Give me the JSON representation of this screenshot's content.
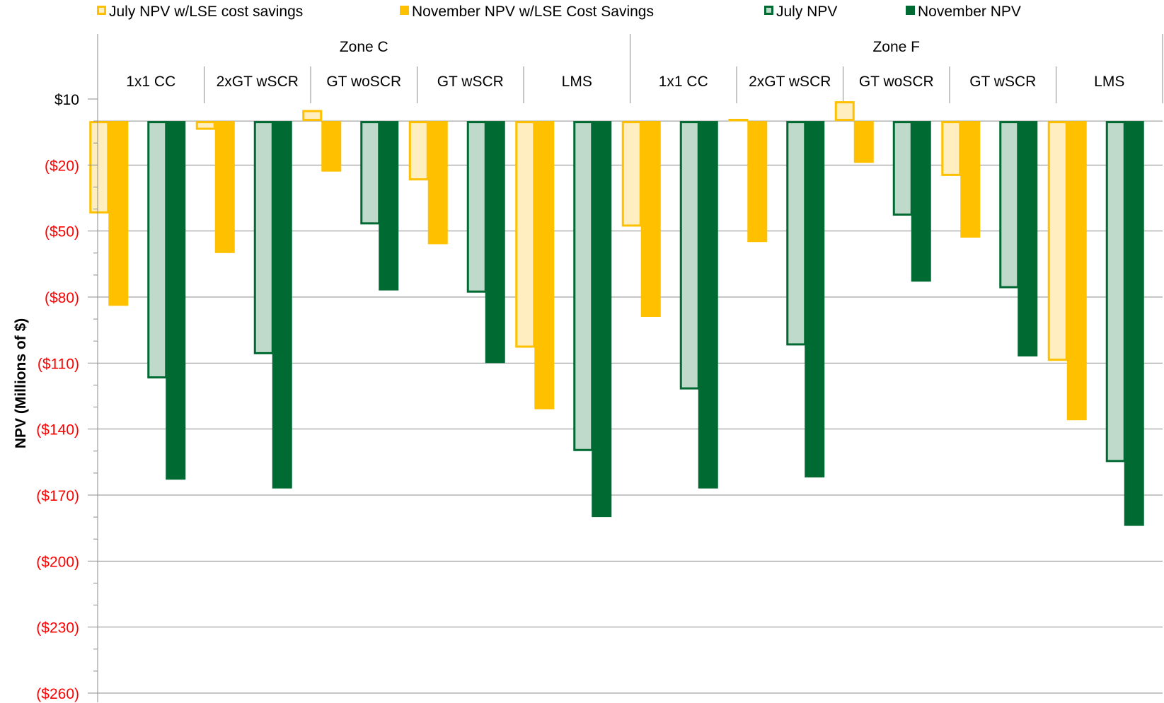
{
  "chart_data": {
    "type": "bar",
    "ylabel": "NPV (Millions of $)",
    "ylim": [
      -260,
      20
    ],
    "y_ticks": [
      10,
      -20,
      -50,
      -80,
      -110,
      -140,
      -170,
      -200,
      -230,
      -260
    ],
    "y_tick_labels": [
      "$10",
      "($20)",
      "($50)",
      "($80)",
      "($110)",
      "($140)",
      "($170)",
      "($200)",
      "($230)",
      "($260)"
    ],
    "y_tick_colors": {
      "positive": "#000000",
      "negative": "#ff0000"
    },
    "grid": true,
    "legend_position": "top",
    "zones": [
      "Zone C",
      "Zone F"
    ],
    "categories": [
      "1x1 CC",
      "2xGT wSCR",
      "GT woSCR",
      "GT wSCR",
      "LMS",
      "1x1 CC",
      "2xGT wSCR",
      "GT woSCR",
      "GT wSCR",
      "LMS"
    ],
    "series": [
      {
        "name": "July NPV w/LSE cost savings",
        "color": "#ffc000",
        "style": "light",
        "values": [
          -42,
          -4,
          5,
          -27,
          -103,
          -48,
          1,
          9,
          -25,
          -109
        ]
      },
      {
        "name": "November NPV w/LSE Cost Savings",
        "color": "#ffc000",
        "style": "solid",
        "values": [
          -84,
          -60,
          -23,
          -56,
          -131,
          -89,
          -55,
          -19,
          -53,
          -136
        ]
      },
      {
        "name": "July NPV",
        "color": "#006a33",
        "style": "light",
        "values": [
          -117,
          -106,
          -47,
          -78,
          -150,
          -122,
          -102,
          -43,
          -76,
          -155
        ]
      },
      {
        "name": "November NPV",
        "color": "#006a33",
        "style": "solid",
        "values": [
          -163,
          -167,
          -77,
          -110,
          -180,
          -167,
          -162,
          -73,
          -107,
          -184
        ]
      }
    ]
  }
}
